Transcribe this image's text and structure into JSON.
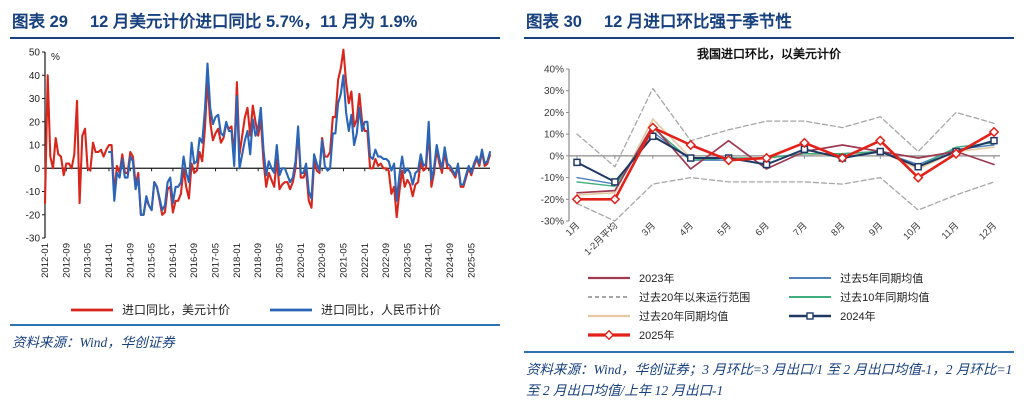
{
  "fig29": {
    "label": "图表 29",
    "title": "12 月美元计价进口同比 5.7%，11 月为 1.9%",
    "source": "资料来源：Wind，华创证券"
  },
  "fig30": {
    "label": "图表 30",
    "title": "12 月进口环比强于季节性",
    "source": "资料来源：Wind，华创证券；3 月环比=3 月出口/1 至 2 月出口均值-1，2 月环比=1 至 2 月出口均值/上年 12 月出口-1"
  },
  "colors": {
    "title_navy": "#17407f",
    "rule_blue": "#2e74b5",
    "usd_red": "#d9261c",
    "cny_blue": "#2a65b8"
  },
  "chart_data": [
    {
      "id": "chart29",
      "type": "line",
      "title": "",
      "ylabel": "%",
      "ylim": [
        -30,
        50
      ],
      "ytick_step": 10,
      "grid": false,
      "legend_position": "bottom",
      "n_points": 168,
      "x_tick_every": 8,
      "x_tick_labels": [
        "2012-01",
        "2012-09",
        "2013-05",
        "2014-01",
        "2014-09",
        "2015-05",
        "2016-01",
        "2016-09",
        "2017-05",
        "2018-01",
        "2018-09",
        "2019-05",
        "2020-01",
        "2020-09",
        "2021-05",
        "2022-01",
        "2022-09",
        "2023-05",
        "2024-01",
        "2024-09",
        "2025-05"
      ],
      "series": [
        {
          "name": "进口同比，美元计价",
          "color": "#d9261c",
          "width": 2.1,
          "legend_col": 0,
          "legend_row": 0,
          "values": [
            -15,
            40,
            5,
            0,
            13,
            6,
            5,
            -3,
            2,
            2,
            0,
            6,
            29,
            -15,
            14,
            17,
            0,
            -1,
            11,
            7,
            7,
            8,
            5,
            8,
            10,
            10,
            -11,
            1,
            -2,
            6,
            -2,
            -2,
            7,
            5,
            -7,
            -2,
            -20,
            -20,
            -13,
            -16,
            -18,
            -6,
            -8,
            -14,
            -20,
            -19,
            -9,
            -8,
            -19,
            -14,
            -14,
            -11,
            0,
            -8,
            -13,
            2,
            -2,
            -1,
            7,
            3,
            17,
            38,
            20,
            12,
            15,
            17,
            11,
            13,
            19,
            17,
            18,
            5,
            37,
            6,
            14,
            22,
            26,
            14,
            27,
            20,
            14,
            21,
            3,
            -8,
            -2,
            -5,
            -8,
            4,
            -9,
            -7,
            -6,
            -6,
            -9,
            -6,
            0,
            16,
            -4,
            -4,
            -1,
            -14,
            -17,
            3,
            -1,
            -2,
            13,
            5,
            5,
            7,
            22,
            22,
            38,
            43,
            51,
            37,
            28,
            33,
            18,
            21,
            32,
            20,
            16,
            16,
            0,
            0,
            4,
            1,
            2,
            0,
            0,
            -1,
            -11,
            -8,
            -21,
            -10,
            -1,
            -8,
            -5,
            -7,
            -12,
            -7,
            -6,
            3,
            -1,
            0,
            16,
            -8,
            -2,
            8,
            2,
            -2,
            7,
            0,
            0,
            -2,
            -4,
            1,
            -8,
            -8,
            -4,
            0,
            -3,
            1,
            4,
            1,
            7,
            1,
            1.9,
            5.7
          ]
        },
        {
          "name": "进口同比，人民币计价",
          "color": "#2a65b8",
          "width": 2.1,
          "legend_col": 0,
          "legend_row": 1,
          "values": [
            null,
            null,
            null,
            null,
            null,
            null,
            null,
            null,
            null,
            null,
            null,
            null,
            null,
            null,
            null,
            null,
            null,
            null,
            null,
            null,
            null,
            null,
            null,
            null,
            7,
            7,
            -14,
            -2,
            -4,
            4,
            -4,
            -4,
            5,
            3,
            -9,
            -4,
            -20,
            -20,
            -12,
            -16,
            -18,
            -6,
            -8,
            -13,
            -18,
            -16,
            -6,
            -4,
            -15,
            -8,
            -8,
            -6,
            5,
            -2,
            -6,
            11,
            2,
            3,
            13,
            11,
            25,
            45,
            26,
            19,
            22,
            23,
            15,
            14,
            20,
            16,
            16,
            1,
            31,
            0,
            6,
            12,
            16,
            6,
            21,
            14,
            17,
            26,
            8,
            -3,
            3,
            0,
            -2,
            10,
            -3,
            0,
            0,
            -3,
            -6,
            -4,
            3,
            18,
            -2,
            -2,
            2,
            -10,
            -13,
            6,
            2,
            -1,
            12,
            1,
            -1,
            0,
            15,
            15,
            28,
            32,
            40,
            24,
            16,
            23,
            10,
            15,
            26,
            16,
            20,
            20,
            5,
            4,
            8,
            5,
            5,
            4,
            4,
            3,
            -1,
            2,
            -14,
            -3,
            5,
            -2,
            0,
            -2,
            -7,
            -2,
            -1,
            6,
            1,
            2,
            20,
            -5,
            0,
            10,
            4,
            0,
            9,
            2,
            1,
            -1,
            -3,
            2,
            -7,
            -7,
            -3,
            1,
            -2,
            2,
            5,
            2,
            8,
            2,
            3,
            7
          ]
        }
      ]
    },
    {
      "id": "chart30",
      "type": "line",
      "title": "我国进口环比，以美元计价",
      "ylim": [
        -30,
        40
      ],
      "ytick_step": 10,
      "ytick_suffix": "%",
      "grid": false,
      "legend_position": "bottom",
      "categories": [
        "1月",
        "1-2月平均",
        "3月",
        "4月",
        "5月",
        "6月",
        "7月",
        "8月",
        "9月",
        "10月",
        "11月",
        "12月"
      ],
      "series": [
        {
          "name": "过去20年以来运行范围",
          "color": "#a6a6a6",
          "width": 1.3,
          "dash": "5 3",
          "legend_col": 0,
          "legend_row": 1,
          "values": [
            10,
            -5,
            31,
            7,
            12,
            16,
            16,
            13,
            18,
            2,
            20,
            15
          ]
        },
        {
          "name": "过去20年以来运行范围下限",
          "color": "#a6a6a6",
          "width": 1.3,
          "dash": "5 3",
          "in_legend": false,
          "values": [
            -22,
            -30,
            -13,
            -10,
            -12,
            -12,
            -12,
            -13,
            -10,
            -25,
            -18,
            -12
          ]
        },
        {
          "name": "过去20年同期均值",
          "color": "#e6c9a0",
          "width": 1.6,
          "legend_col": 0,
          "legend_row": 2,
          "values": [
            -18,
            -17,
            17,
            -1,
            -1,
            -1,
            1,
            0,
            2,
            -6,
            2,
            4
          ]
        },
        {
          "name": "过去5年同期均值",
          "color": "#4f81bd",
          "width": 1.4,
          "legend_col": 1,
          "legend_row": 0,
          "values": [
            -10,
            -13,
            11,
            -2,
            -2,
            -1,
            1,
            1,
            2,
            -4,
            3,
            5
          ]
        },
        {
          "name": "过去10年同期均值",
          "color": "#3fae7e",
          "width": 1.4,
          "legend_col": 1,
          "legend_row": 1,
          "values": [
            -12,
            -14,
            13,
            -2,
            -1,
            -1,
            1,
            1,
            2,
            -5,
            4,
            6
          ]
        },
        {
          "name": "2023年",
          "color": "#9e3a52",
          "width": 1.7,
          "legend_col": 0,
          "legend_row": 0,
          "values": [
            -17,
            -16,
            14,
            -6,
            7,
            -6,
            2,
            5,
            2,
            -1,
            2,
            -4
          ]
        },
        {
          "name": "2024年",
          "color": "#1f3864",
          "width": 2.0,
          "marker": "square",
          "legend_col": 1,
          "legend_row": 2,
          "values": [
            -3,
            -12,
            9,
            -1,
            -1,
            -4,
            3,
            -1,
            2,
            -5,
            2,
            7
          ]
        },
        {
          "name": "2025年",
          "color": "#e32119",
          "width": 2.6,
          "marker": "diamond",
          "legend_col": 0,
          "legend_row": 3,
          "values": [
            -20,
            -20,
            13,
            5,
            -2,
            -1,
            6,
            -1,
            7,
            -10,
            1,
            11
          ]
        }
      ]
    }
  ]
}
